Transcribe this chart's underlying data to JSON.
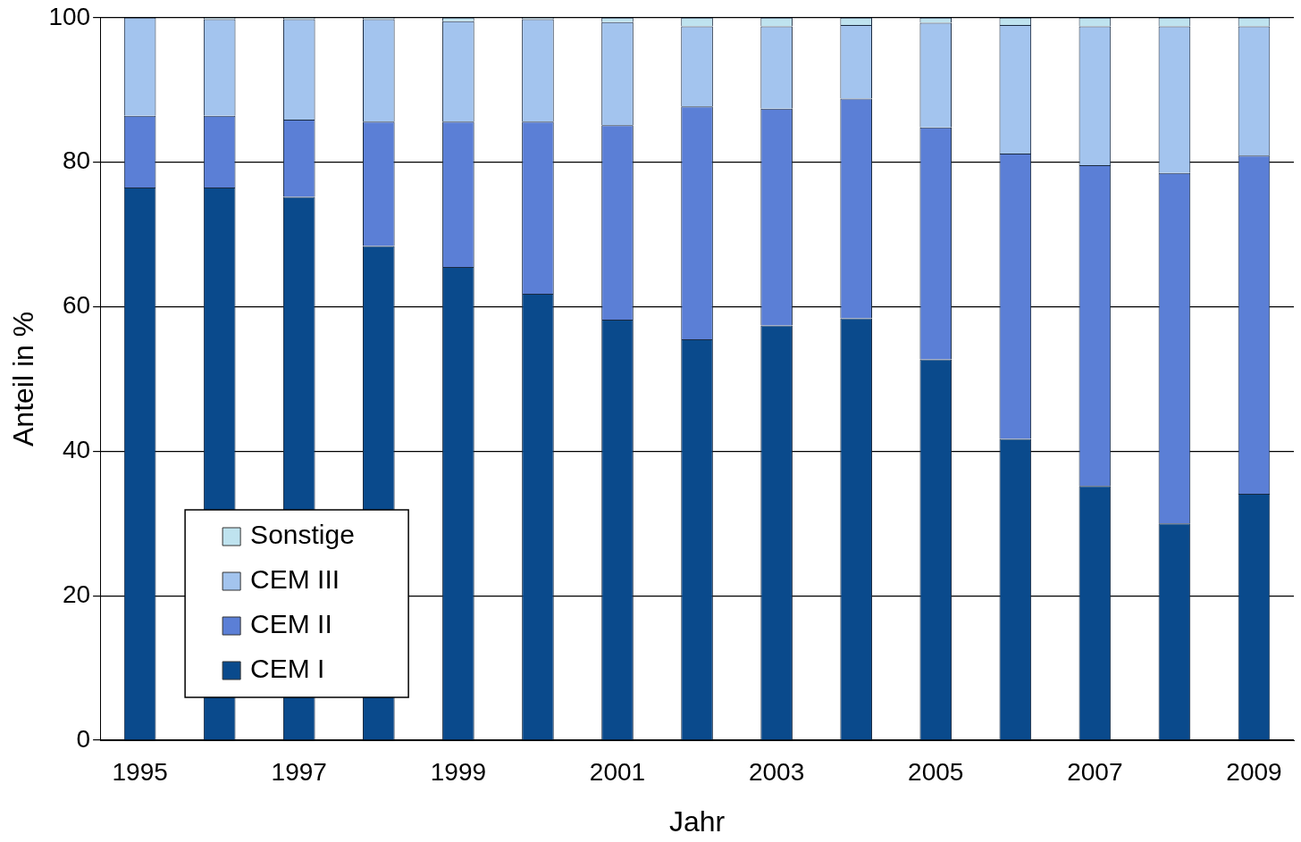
{
  "chart_data": {
    "type": "bar",
    "stacked": true,
    "xlabel": "Jahr",
    "ylabel": "Anteil in %",
    "categories": [
      "1995",
      null,
      "1997",
      null,
      "1999",
      null,
      "2001",
      null,
      "2003",
      null,
      "2005",
      null,
      "2007",
      null,
      "2009"
    ],
    "series": [
      {
        "name": "CEM I",
        "color": "#0a4a8c",
        "values": [
          76.5,
          76.5,
          75.2,
          68.4,
          65.5,
          61.8,
          58.2,
          55.5,
          57.4,
          58.4,
          52.7,
          41.7,
          35.2,
          30.0,
          34.1
        ]
      },
      {
        "name": "CEM II",
        "color": "#5b7fd6",
        "values": [
          9.9,
          9.9,
          10.7,
          17.2,
          20.1,
          23.8,
          26.9,
          32.2,
          30.0,
          30.4,
          32.1,
          39.5,
          44.4,
          48.5,
          46.8
        ]
      },
      {
        "name": "CEM III",
        "color": "#a3c4ee",
        "values": [
          13.6,
          13.4,
          13.9,
          14.2,
          13.9,
          14.2,
          14.3,
          11.1,
          11.4,
          10.2,
          14.5,
          17.8,
          19.2,
          20.3,
          17.9
        ]
      },
      {
        "name": "Sonstige",
        "color": "#bfe3ef",
        "values": [
          0,
          0.2,
          0.2,
          0.2,
          0.5,
          0.2,
          0.6,
          1.2,
          1.2,
          1.0,
          0.7,
          1.0,
          1.2,
          1.2,
          1.2
        ]
      }
    ],
    "ylim": [
      0,
      100
    ],
    "yticks": [
      0,
      20,
      40,
      60,
      80,
      100
    ],
    "grid": "y",
    "legend": "bottom left"
  }
}
